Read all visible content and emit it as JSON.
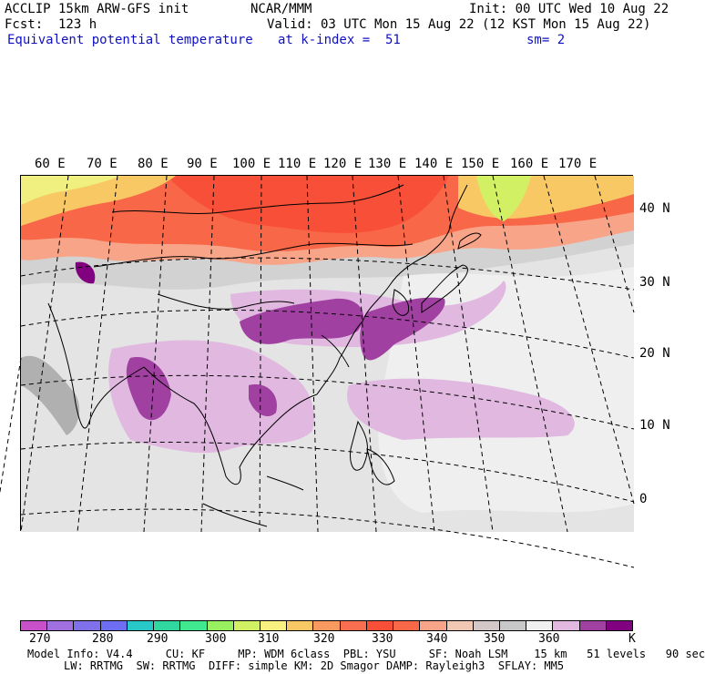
{
  "header": {
    "line1_left": "ACCLIP 15km ARW-GFS init",
    "line1_center": "NCAR/MMM",
    "line1_right": "Init: 00 UTC Wed 10 Aug 22",
    "line2_left": "Fcst:  123 h",
    "line2_right": "Valid: 03 UTC Mon 15 Aug 22 (12 KST Mon 15 Aug 22)",
    "line3_left": "Equivalent potential temperature",
    "line3_center": "at k-index =  51",
    "line3_right": "sm= 2"
  },
  "map": {
    "lon_labels": [
      "60 E",
      "70 E",
      "80 E",
      "90 E",
      "100 E",
      "110 E",
      "120 E",
      "130 E",
      "140 E",
      "150 E",
      "160 E",
      "170 E"
    ],
    "lat_labels": [
      "40 N",
      "30 N",
      "20 N",
      "10 N",
      "0"
    ]
  },
  "colorbar": {
    "colors": [
      "#c850c8",
      "#a070e0",
      "#8070ea",
      "#6e6ef2",
      "#28c8c8",
      "#30d8a0",
      "#40e890",
      "#98f060",
      "#d2f064",
      "#f8f080",
      "#f8c864",
      "#f89a60",
      "#f86e50",
      "#f85038",
      "#f86848",
      "#f8a488",
      "#f0c8b4",
      "#d2c8c8",
      "#c8c8c8",
      "#f0f0f0",
      "#e0b8e0",
      "#a040a0",
      "#800080"
    ],
    "labels": [
      "270",
      "280",
      "290",
      "300",
      "310",
      "320",
      "330",
      "340",
      "350",
      "360",
      "K"
    ]
  },
  "footer": {
    "line1": "Model Info: V4.4     CU: KF     MP: WDM 6class  PBL: YSU     SF: Noah LSM    15 km   51 levels   90 sec",
    "line2": "LW: RRTMG  SW: RRTMG  DIFF: simple KM: 2D Smagor DAMP: Rayleigh3  SFLAY: MM5"
  }
}
